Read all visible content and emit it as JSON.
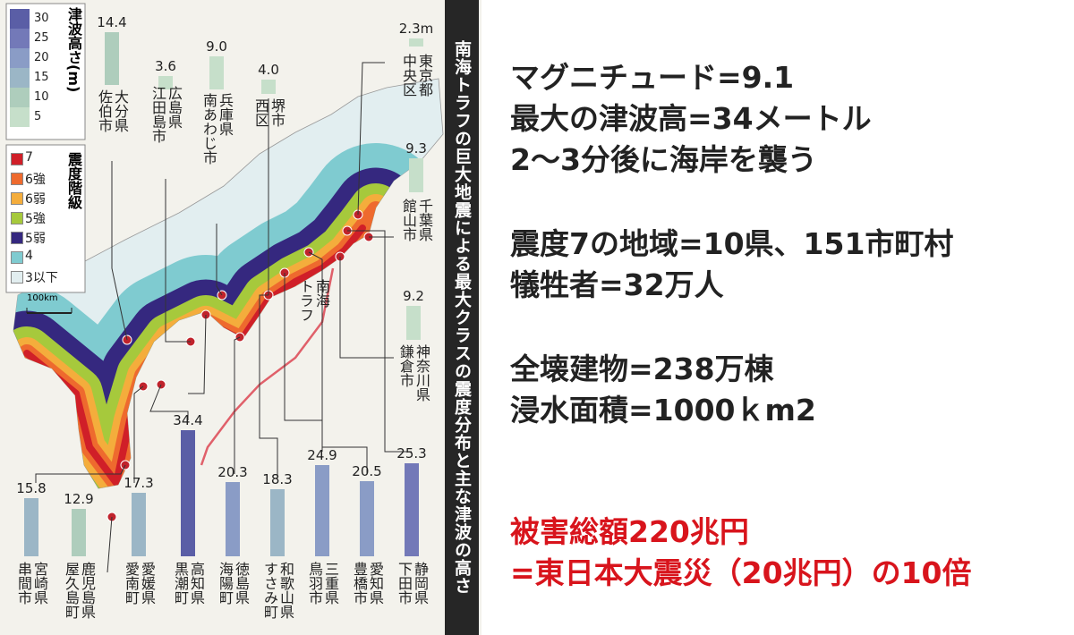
{
  "header": {
    "title": "南海トラフの巨大地震による最大クラスの震度分布と主な津波の高さ"
  },
  "legend_tsunami": {
    "title": "津波高さ(m)",
    "ticks": [
      30,
      25,
      20,
      15,
      10,
      5
    ],
    "colors": [
      "#5a5ea6",
      "#7379b8",
      "#8a9cc6",
      "#9bb6c6",
      "#aecdbc",
      "#c6dfca"
    ]
  },
  "legend_intensity": {
    "title": "震度階級",
    "items": [
      {
        "label": "7",
        "color": "#d01f28"
      },
      {
        "label": "6強",
        "color": "#ee6a2e"
      },
      {
        "label": "6弱",
        "color": "#f4ad3c"
      },
      {
        "label": "5強",
        "color": "#a6c93c"
      },
      {
        "label": "5弱",
        "color": "#35287f"
      },
      {
        "label": "4",
        "color": "#7fcbd0"
      },
      {
        "label": "3以下",
        "color": "#e2eef0"
      }
    ]
  },
  "scale": "100km",
  "trough": [
    "南海",
    "トラフ"
  ],
  "tsunami_heights": [
    {
      "prefecture": "大分県",
      "city": "佐伯市",
      "value": 14.4,
      "label": "14.4"
    },
    {
      "prefecture": "広島県",
      "city": "江田島市",
      "value": 3.6,
      "label": "3.6"
    },
    {
      "prefecture": "兵庫県",
      "city": "南あわじ市",
      "value": 9.0,
      "label": "9.0"
    },
    {
      "prefecture": "堺市",
      "city": "西区",
      "value": 4.0,
      "label": "4.0"
    },
    {
      "prefecture": "東京都",
      "city": "中央区",
      "value": 2.3,
      "label": "2.3m"
    },
    {
      "prefecture": "千葉県",
      "city": "館山市",
      "value": 9.3,
      "label": "9.3"
    },
    {
      "prefecture": "神奈川県",
      "city": "鎌倉市",
      "value": 9.2,
      "label": "9.2"
    },
    {
      "prefecture": "宮崎県",
      "city": "串間市",
      "value": 15.8,
      "label": "15.8"
    },
    {
      "prefecture": "鹿児島県",
      "city": "屋久島町",
      "value": 12.9,
      "label": "12.9"
    },
    {
      "prefecture": "愛媛県",
      "city": "愛南町",
      "value": 17.3,
      "label": "17.3"
    },
    {
      "prefecture": "高知県",
      "city": "黒潮町",
      "value": 34.4,
      "label": "34.4"
    },
    {
      "prefecture": "徳島県",
      "city": "海陽町",
      "value": 20.3,
      "label": "20.3"
    },
    {
      "prefecture": "和歌山県",
      "city": "すさみ町",
      "value": 18.3,
      "label": "18.3"
    },
    {
      "prefecture": "三重県",
      "city": "鳥羽市",
      "value": 24.9,
      "label": "24.9"
    },
    {
      "prefecture": "愛知県",
      "city": "豊橋市",
      "value": 20.5,
      "label": "20.5"
    },
    {
      "prefecture": "静岡県",
      "city": "下田市",
      "value": 25.3,
      "label": "25.3"
    }
  ],
  "facts": {
    "lines": [
      "マグニチュード=9.1",
      "最大の津波高=34メートル",
      "2〜3分後に海岸を襲う",
      "震度7の地域=10県、151市町村",
      "犠牲者=32万人",
      "全壊建物=238万棟",
      "浸水面積=1000ｋm2"
    ],
    "damage": [
      "被害総額220兆円",
      "=東日本大震災（20兆円）の10倍"
    ]
  }
}
